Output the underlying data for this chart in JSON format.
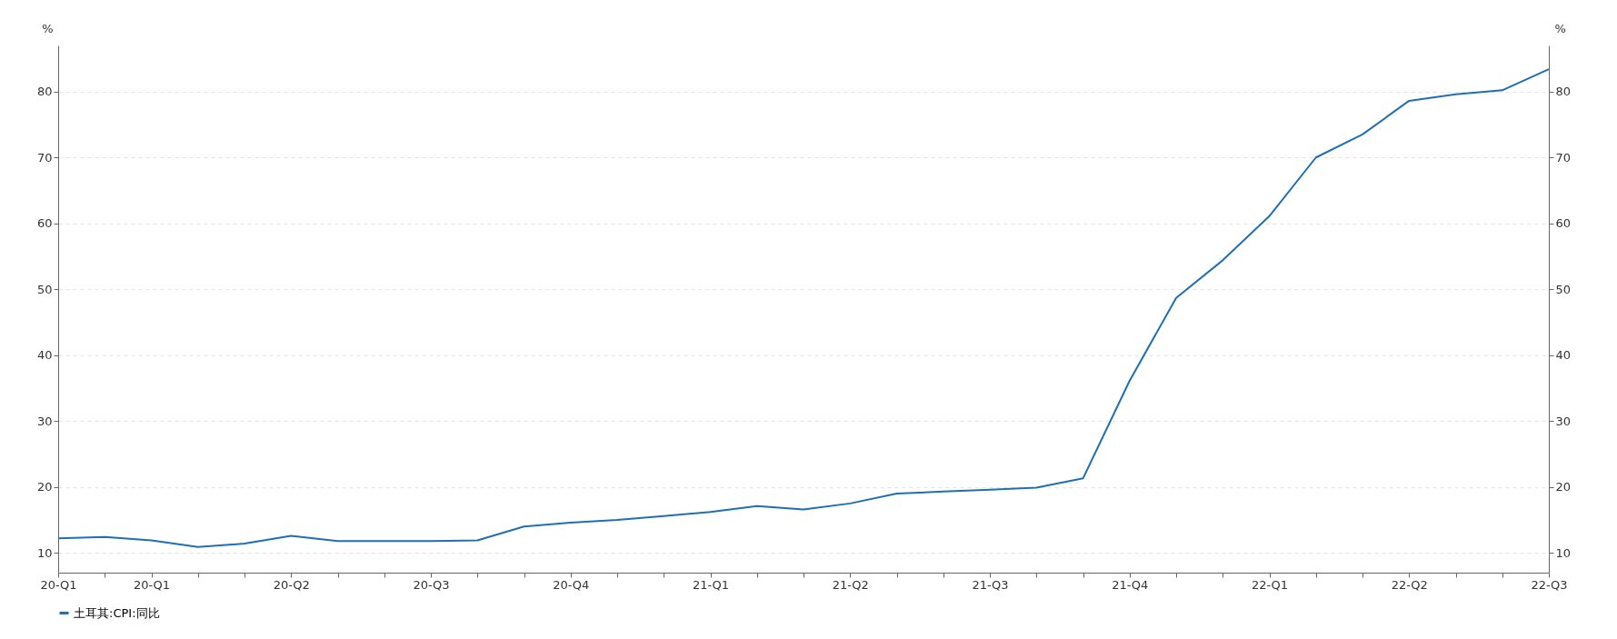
{
  "chart_data": {
    "type": "line",
    "ylabel": "%",
    "y2label": "%",
    "categories": [
      "20-Q1",
      null,
      "20-Q1",
      null,
      null,
      "20-Q2",
      null,
      null,
      "20-Q3",
      null,
      null,
      "20-Q4",
      null,
      null,
      "21-Q1",
      null,
      null,
      "21-Q2",
      null,
      null,
      "21-Q3",
      null,
      null,
      "21-Q4",
      null,
      null,
      "22-Q1",
      null,
      null,
      "22-Q2",
      null,
      null,
      "22-Q3"
    ],
    "series": [
      {
        "name": "土耳其:CPI:同比",
        "color": "#1f6fb4",
        "values": [
          12.2,
          12.4,
          11.9,
          10.9,
          11.4,
          12.6,
          11.8,
          11.8,
          11.8,
          11.9,
          14.0,
          14.6,
          15.0,
          15.6,
          16.2,
          17.1,
          16.6,
          17.5,
          19.0,
          19.3,
          19.6,
          19.9,
          21.3,
          36.1,
          48.7,
          54.4,
          61.1,
          70.0,
          73.5,
          78.6,
          79.6,
          80.2,
          83.4
        ]
      }
    ],
    "ylim": [
      7,
      87
    ],
    "yticks": [
      10,
      20,
      30,
      40,
      50,
      60,
      70,
      80
    ],
    "y2lim": [
      7,
      87
    ],
    "y2ticks": [
      10,
      20,
      30,
      40,
      50,
      60,
      70,
      80
    ],
    "grid": "y",
    "legend": "bottom",
    "marker": "none",
    "line_style": "solid"
  }
}
